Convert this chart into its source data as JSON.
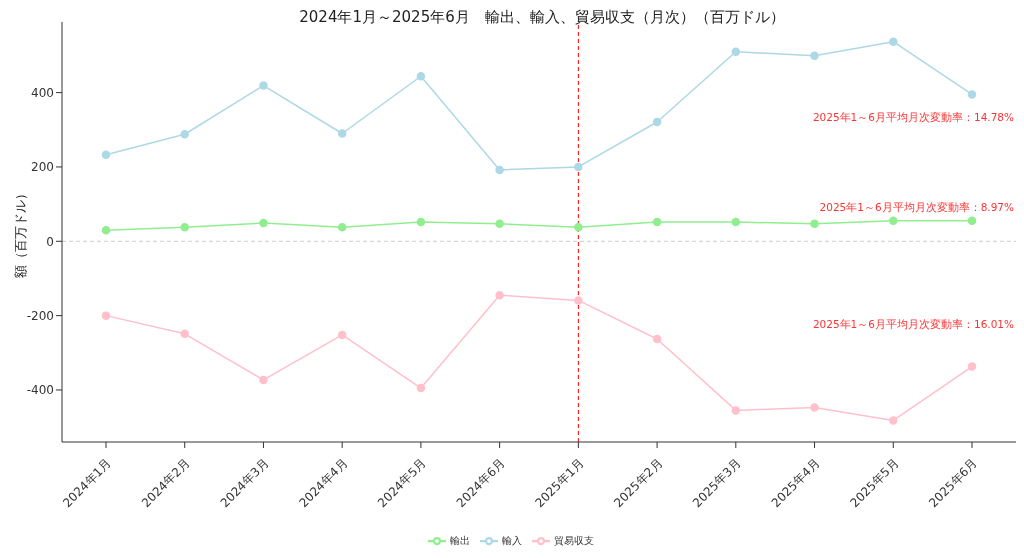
{
  "chart_data": {
    "type": "line",
    "title": "2024年1月～2025年6月　輸出、輸入、貿易収支（月次）（百万ドル）",
    "ylabel": "額（百万ドル）",
    "categories": [
      "2024年1月",
      "2024年2月",
      "2024年3月",
      "2024年4月",
      "2024年5月",
      "2024年6月",
      "2025年1月",
      "2025年2月",
      "2025年3月",
      "2025年4月",
      "2025年5月",
      "2025年6月"
    ],
    "series": [
      {
        "name": "輸出",
        "color": "#90ee90",
        "values": [
          30,
          38,
          49,
          38,
          52,
          47,
          38,
          52,
          52,
          47,
          55,
          55
        ]
      },
      {
        "name": "輸入",
        "color": "#add8e6",
        "values": [
          233,
          288,
          419,
          290,
          444,
          192,
          200,
          321,
          510,
          499,
          537,
          395
        ]
      },
      {
        "name": "貿易収支",
        "color": "#ffc0cb",
        "values": [
          -200,
          -249,
          -373,
          -252,
          -395,
          -145,
          -159,
          -263,
          -455,
          -447,
          -482,
          -337
        ]
      }
    ],
    "ylim": [
      -540,
      590
    ],
    "yticks": [
      -400,
      -200,
      0,
      200,
      400
    ],
    "grid": false,
    "legend": "bottom",
    "marker": "circle",
    "line_style": "solid",
    "ref_lines": [
      {
        "axis": "x",
        "value": "2025年1月",
        "color": "#ff0000",
        "line_style": "dashed"
      },
      {
        "axis": "y",
        "value": 0,
        "color": "#cccccc",
        "line_style": "dashed"
      }
    ],
    "annotations": [
      "2025年1～6月平均月次変動率：14.78%",
      "2025年1～6月平均月次変動率：8.97%",
      "2025年1～6月平均月次変動率：16.01%"
    ]
  }
}
